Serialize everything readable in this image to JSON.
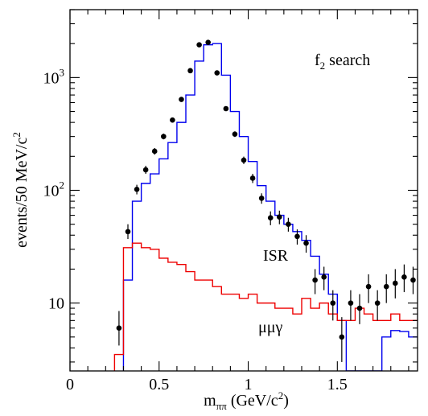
{
  "chart_data": {
    "type": "line",
    "title": "",
    "xlabel": "m",
    "xlabel_sub": "ππ",
    "xlabel_unit": "(GeV/c",
    "xlabel_sup": "2",
    "xlabel_close": ")",
    "ylabel": "events/50 MeV/c",
    "ylabel_sup": "2",
    "yscale": "log",
    "xlim": [
      0,
      1.95
    ],
    "ylim": [
      2.5,
      4000
    ],
    "x_ticks": [
      {
        "value": 0,
        "label": "0"
      },
      {
        "value": 0.5,
        "label": "0.5"
      },
      {
        "value": 1,
        "label": "1"
      },
      {
        "value": 1.5,
        "label": "1.5"
      }
    ],
    "y_ticks": [
      {
        "value": 10,
        "base": "10",
        "exp": ""
      },
      {
        "value": 100,
        "base": "10",
        "exp": "2"
      },
      {
        "value": 1000,
        "base": "10",
        "exp": "3"
      }
    ],
    "annotations": {
      "search_main": "f",
      "search_sub": "2",
      "search_rest": " search",
      "isr": "ISR",
      "mumugamma": "μμγ"
    },
    "colors": {
      "isr": "#0000ee",
      "mumugamma": "#ee0000",
      "data": "#000000"
    },
    "series": [
      {
        "name": "ISR",
        "style": "step",
        "color": "#0000ee",
        "bin_edges": [
          0.3,
          0.35,
          0.4,
          0.45,
          0.5,
          0.55,
          0.6,
          0.65,
          0.7,
          0.75,
          0.8,
          0.85,
          0.9,
          0.95,
          1.0,
          1.05,
          1.1,
          1.15,
          1.2,
          1.25,
          1.3,
          1.35,
          1.4,
          1.45,
          1.5,
          1.55,
          1.6,
          1.65,
          1.7,
          1.75,
          1.8,
          1.85,
          1.9,
          1.95
        ],
        "values": [
          16,
          80,
          115,
          140,
          190,
          265,
          400,
          700,
          1400,
          1950,
          2000,
          1050,
          500,
          300,
          180,
          110,
          80,
          60,
          50,
          43,
          36,
          26,
          18,
          12,
          7,
          2.5,
          2.5,
          2.5,
          2.5,
          5.0,
          5.7,
          5.6,
          5.0
        ]
      },
      {
        "name": "μμγ",
        "style": "step",
        "color": "#ee0000",
        "bin_edges": [
          0.25,
          0.3,
          0.35,
          0.4,
          0.45,
          0.5,
          0.55,
          0.6,
          0.65,
          0.7,
          0.75,
          0.8,
          0.85,
          0.9,
          0.95,
          1.0,
          1.05,
          1.1,
          1.15,
          1.2,
          1.25,
          1.3,
          1.35,
          1.4,
          1.45,
          1.5,
          1.55,
          1.6,
          1.65,
          1.7,
          1.75,
          1.8,
          1.85,
          1.9,
          1.95
        ],
        "values": [
          3.5,
          31,
          34,
          31,
          30,
          25,
          23,
          22,
          19,
          16,
          16,
          14,
          12,
          12,
          11,
          12,
          10,
          10,
          9,
          9,
          8,
          11,
          9,
          10,
          8,
          7,
          7,
          9,
          8,
          7,
          7,
          8,
          7,
          7
        ]
      },
      {
        "name": "data",
        "style": "points",
        "color": "#000000",
        "points": [
          {
            "x": 0.275,
            "y": 6.0,
            "lo": 4.2,
            "hi": 8.5
          },
          {
            "x": 0.325,
            "y": 43,
            "lo": 37,
            "hi": 50
          },
          {
            "x": 0.375,
            "y": 102,
            "lo": 92,
            "hi": 112
          },
          {
            "x": 0.425,
            "y": 152,
            "lo": 140,
            "hi": 165
          },
          {
            "x": 0.475,
            "y": 222,
            "lo": 207,
            "hi": 237
          },
          {
            "x": 0.525,
            "y": 300,
            "lo": 283,
            "hi": 318
          },
          {
            "x": 0.575,
            "y": 420,
            "lo": 400,
            "hi": 440
          },
          {
            "x": 0.625,
            "y": 640,
            "lo": 615,
            "hi": 665
          },
          {
            "x": 0.675,
            "y": 1150,
            "lo": 1115,
            "hi": 1185
          },
          {
            "x": 0.725,
            "y": 1950,
            "lo": 1905,
            "hi": 1995
          },
          {
            "x": 0.775,
            "y": 2050,
            "lo": 2005,
            "hi": 2095
          },
          {
            "x": 0.825,
            "y": 1100,
            "lo": 1065,
            "hi": 1135
          },
          {
            "x": 0.875,
            "y": 530,
            "lo": 507,
            "hi": 553
          },
          {
            "x": 0.925,
            "y": 315,
            "lo": 297,
            "hi": 333
          },
          {
            "x": 0.975,
            "y": 185,
            "lo": 171,
            "hi": 199
          },
          {
            "x": 1.025,
            "y": 128,
            "lo": 116,
            "hi": 140
          },
          {
            "x": 1.075,
            "y": 85,
            "lo": 76,
            "hi": 94
          },
          {
            "x": 1.125,
            "y": 57,
            "lo": 49,
            "hi": 65
          },
          {
            "x": 1.175,
            "y": 58,
            "lo": 50,
            "hi": 66
          },
          {
            "x": 1.225,
            "y": 50,
            "lo": 43,
            "hi": 57
          },
          {
            "x": 1.275,
            "y": 39,
            "lo": 33,
            "hi": 45
          },
          {
            "x": 1.325,
            "y": 34,
            "lo": 28,
            "hi": 40
          },
          {
            "x": 1.375,
            "y": 16,
            "lo": 12,
            "hi": 20
          },
          {
            "x": 1.425,
            "y": 17,
            "lo": 13,
            "hi": 21
          },
          {
            "x": 1.475,
            "y": 10,
            "lo": 7,
            "hi": 13
          },
          {
            "x": 1.525,
            "y": 5.0,
            "lo": 3.0,
            "hi": 7.5
          },
          {
            "x": 1.575,
            "y": 10,
            "lo": 7,
            "hi": 13
          },
          {
            "x": 1.625,
            "y": 9,
            "lo": 6.5,
            "hi": 12
          },
          {
            "x": 1.675,
            "y": 14,
            "lo": 10,
            "hi": 18
          },
          {
            "x": 1.725,
            "y": 10,
            "lo": 7,
            "hi": 13
          },
          {
            "x": 1.775,
            "y": 14,
            "lo": 10,
            "hi": 18
          },
          {
            "x": 1.825,
            "y": 15,
            "lo": 11,
            "hi": 20
          },
          {
            "x": 1.875,
            "y": 17,
            "lo": 12.5,
            "hi": 22
          },
          {
            "x": 1.925,
            "y": 16,
            "lo": 12,
            "hi": 21
          }
        ]
      }
    ]
  }
}
